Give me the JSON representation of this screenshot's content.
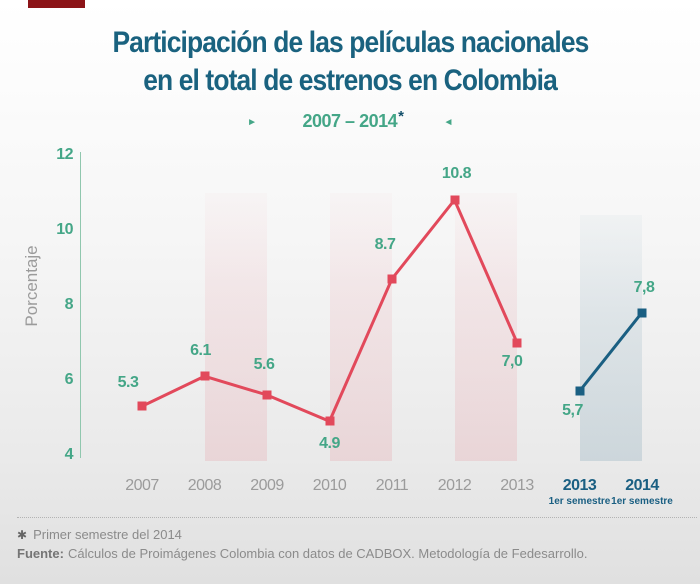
{
  "page": {
    "title_line1": "Participación de las películas nacionales",
    "title_line2": "en el total de estrenos en Colombia",
    "subtitle": "2007 – 2014",
    "subtitle_footnote_mark": "*",
    "arrow_left_glyph": "►",
    "arrow_right_glyph": "◄"
  },
  "footer": {
    "note_symbol": "✱",
    "note": "Primer semestre del 2014",
    "source_label": "Fuente:",
    "source_text": "Cálculos de Proimágenes Colombia con datos de CADBOX. Metodología de Fedesarrollo."
  },
  "colors": {
    "title": "#1a627f",
    "green_accent": "#44a687",
    "red_series": "#e2495b",
    "blue_series": "#1a5f82",
    "gray_text": "#9b9b9b",
    "axis_line": "#90c7ae",
    "top_mark_red": "#8c1418"
  },
  "chart_data": {
    "type": "line",
    "title": "Participación de las películas nacionales en el total de estrenos en Colombia",
    "subtitle": "2007 – 2014*",
    "ylabel": "Porcentaje",
    "xlabel": "",
    "ylim": [
      4,
      12
    ],
    "yticks": [
      12,
      10,
      8,
      6,
      4
    ],
    "grid": false,
    "legend_position": "none",
    "categories": [
      {
        "label": "2007",
        "sublabel": ""
      },
      {
        "label": "2008",
        "sublabel": ""
      },
      {
        "label": "2009",
        "sublabel": ""
      },
      {
        "label": "2010",
        "sublabel": ""
      },
      {
        "label": "2011",
        "sublabel": ""
      },
      {
        "label": "2012",
        "sublabel": ""
      },
      {
        "label": "2013",
        "sublabel": ""
      },
      {
        "label": "2013",
        "sublabel": "1er semestre"
      },
      {
        "label": "2014",
        "sublabel": "1er semestre"
      }
    ],
    "series": [
      {
        "name": "anual-2007-2013",
        "color": "#e2495b",
        "points": [
          {
            "x": 0,
            "value": 5.3,
            "label": "5.3"
          },
          {
            "x": 1,
            "value": 6.1,
            "label": "6.1"
          },
          {
            "x": 2,
            "value": 5.6,
            "label": "5.6"
          },
          {
            "x": 3,
            "value": 4.9,
            "label": "4.9"
          },
          {
            "x": 4,
            "value": 8.7,
            "label": "8.7"
          },
          {
            "x": 5,
            "value": 10.8,
            "label": "10.8"
          },
          {
            "x": 6,
            "value": 7.0,
            "label": "7,0"
          }
        ]
      },
      {
        "name": "primer-semestre-2013-2014",
        "color": "#1a5f82",
        "points": [
          {
            "x": 7,
            "value": 5.7,
            "label": "5,7"
          },
          {
            "x": 8,
            "value": 7.8,
            "label": "7,8"
          }
        ]
      }
    ],
    "bands": [
      {
        "from": 1,
        "to": 2,
        "style": "pink"
      },
      {
        "from": 3,
        "to": 4,
        "style": "pink"
      },
      {
        "from": 5,
        "to": 6,
        "style": "pink"
      },
      {
        "from": 7,
        "to": 8,
        "style": "blue"
      }
    ]
  }
}
